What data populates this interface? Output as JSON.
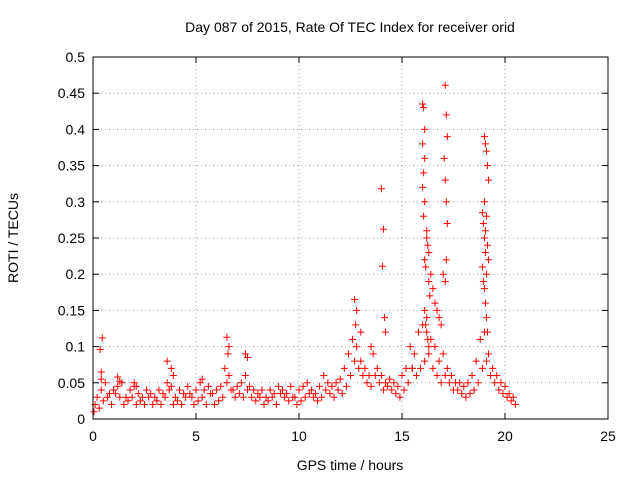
{
  "chart_data": {
    "type": "scatter",
    "title": "Day 087 of 2015, Rate Of TEC Index for receiver orid",
    "xlabel": "GPS time / hours",
    "ylabel": "ROTI / TECUs",
    "xlim": [
      0,
      25
    ],
    "ylim": [
      0,
      0.5
    ],
    "xticks": [
      0,
      5,
      10,
      15,
      20,
      25
    ],
    "xtick_labels": [
      "0",
      "5",
      "10",
      "15",
      "20",
      "25"
    ],
    "yticks": [
      0,
      0.05,
      0.1,
      0.15,
      0.2,
      0.25,
      0.3,
      0.35,
      0.4,
      0.45,
      0.5
    ],
    "ytick_labels": [
      "0",
      "0.05",
      "0.1",
      "0.15",
      "0.2",
      "0.25",
      "0.3",
      "0.35",
      "0.4",
      "0.45",
      "0.5"
    ],
    "grid": true,
    "marker": "plus",
    "color": "#ff0000",
    "series": [
      {
        "x": [
          0.1,
          0.3,
          0.5,
          0.7,
          0.9,
          1.1,
          1.3,
          1.5,
          1.7,
          1.9,
          2.1,
          2.3,
          2.5,
          2.7,
          2.9,
          3.1,
          3.3,
          3.5,
          3.7,
          3.9,
          4.1,
          4.3,
          4.5,
          4.7,
          4.9,
          5.1,
          5.3,
          5.5,
          5.7,
          5.9,
          6.1,
          6.3,
          6.5,
          6.7,
          6.9,
          7.1,
          7.3,
          7.5,
          7.7,
          7.9,
          8.1,
          8.3,
          8.5,
          8.7,
          8.9,
          9.1,
          9.3,
          9.5,
          9.7,
          9.9,
          10.1,
          10.3,
          10.5,
          10.7,
          10.9,
          11.1,
          11.3,
          11.5,
          11.7,
          11.9,
          12.1,
          12.3,
          12.5,
          12.7,
          12.9,
          13.1,
          13.3,
          13.5,
          13.7,
          13.9,
          14.1,
          14.3,
          14.5,
          14.7,
          14.9,
          15.1,
          15.3,
          15.5,
          15.7,
          15.9,
          16.1,
          16.3,
          16.5,
          16.7,
          16.9,
          17.1,
          17.3,
          17.5,
          17.7,
          17.9,
          18.1,
          18.3,
          18.5,
          18.7,
          18.9,
          19.1,
          19.3,
          19.5,
          19.7,
          19.9,
          20.1,
          20.3,
          20.5,
          0.05,
          0.2,
          0.4,
          0.6,
          0.8,
          1.0,
          1.2,
          1.4,
          1.6,
          1.8,
          2.0,
          2.2,
          2.4,
          2.6,
          2.8,
          3.0,
          3.2,
          3.4,
          3.6,
          3.8,
          4.0,
          4.2,
          4.4,
          4.6,
          4.8,
          5.0,
          5.2,
          5.4,
          5.6,
          5.8,
          6.0,
          6.2,
          6.4,
          6.6,
          6.8,
          7.0,
          7.2,
          7.4,
          7.6,
          7.8,
          8.0,
          8.2,
          8.4,
          8.6,
          8.8,
          9.0,
          9.2,
          9.4,
          9.6,
          9.8,
          10.0,
          10.2,
          10.4,
          10.6,
          10.8,
          11.0,
          11.2,
          11.4,
          11.6,
          11.8,
          12.0,
          12.2,
          12.4,
          12.6,
          12.8,
          13.0,
          13.2,
          13.4,
          13.6,
          13.8,
          14.0,
          14.2,
          14.4,
          14.6,
          14.8,
          15.0,
          15.2,
          15.4,
          15.6,
          15.8,
          16.0,
          16.2,
          16.4,
          16.6,
          16.8,
          17.0,
          17.2,
          17.4,
          17.6,
          17.8,
          18.0,
          18.2,
          18.4,
          18.6,
          18.8,
          19.0,
          19.2,
          19.4,
          19.6,
          19.8,
          20.0,
          20.2,
          20.4,
          0.45,
          0.35,
          0.4,
          0.4,
          1.2,
          1.3,
          2.0,
          2.1,
          3.6,
          3.8,
          3.9,
          5.3,
          6.5,
          6.6,
          6.55,
          7.4,
          7.5,
          12.7,
          12.8,
          12.75,
          13.0,
          13.5,
          14.0,
          14.1,
          14.05,
          14.15,
          14.2,
          15.5,
          16.0,
          16.05,
          16.1,
          16.0,
          16.1,
          16.05,
          16.0,
          16.1,
          16.05,
          16.2,
          16.3,
          16.4,
          16.5,
          16.6,
          16.7,
          16.8,
          16.9,
          17.0,
          17.1,
          17.15,
          17.2,
          17.05,
          17.1,
          17.15,
          17.2,
          17.15,
          17.1,
          19.0,
          19.05,
          19.1,
          19.15,
          19.2,
          19.0,
          19.1,
          19.05,
          19.15,
          19.2,
          19.1,
          19.0,
          19.05,
          19.1,
          19.15,
          18.9,
          18.95,
          19.0,
          19.05,
          18.9,
          18.95,
          16.2,
          16.25,
          16.1,
          16.15,
          16.3,
          16.35,
          16.1,
          16.15,
          16.2,
          16.25,
          16.3
        ],
        "y": [
          0.02,
          0.015,
          0.025,
          0.03,
          0.02,
          0.035,
          0.03,
          0.02,
          0.025,
          0.03,
          0.02,
          0.025,
          0.02,
          0.03,
          0.02,
          0.025,
          0.02,
          0.03,
          0.04,
          0.02,
          0.025,
          0.02,
          0.03,
          0.035,
          0.02,
          0.025,
          0.03,
          0.02,
          0.035,
          0.02,
          0.025,
          0.03,
          0.05,
          0.04,
          0.03,
          0.035,
          0.03,
          0.04,
          0.03,
          0.025,
          0.03,
          0.02,
          0.025,
          0.03,
          0.02,
          0.035,
          0.03,
          0.025,
          0.03,
          0.02,
          0.025,
          0.03,
          0.035,
          0.03,
          0.025,
          0.03,
          0.04,
          0.035,
          0.03,
          0.04,
          0.035,
          0.045,
          0.06,
          0.08,
          0.07,
          0.06,
          0.05,
          0.045,
          0.06,
          0.05,
          0.04,
          0.045,
          0.04,
          0.035,
          0.03,
          0.04,
          0.05,
          0.07,
          0.06,
          0.07,
          0.08,
          0.09,
          0.07,
          0.06,
          0.05,
          0.06,
          0.05,
          0.04,
          0.04,
          0.035,
          0.03,
          0.035,
          0.04,
          0.05,
          0.07,
          0.08,
          0.06,
          0.05,
          0.04,
          0.035,
          0.03,
          0.025,
          0.02,
          0.01,
          0.03,
          0.04,
          0.05,
          0.035,
          0.04,
          0.045,
          0.05,
          0.03,
          0.04,
          0.045,
          0.035,
          0.03,
          0.04,
          0.035,
          0.03,
          0.04,
          0.035,
          0.05,
          0.045,
          0.03,
          0.04,
          0.035,
          0.045,
          0.03,
          0.04,
          0.05,
          0.04,
          0.045,
          0.035,
          0.04,
          0.045,
          0.07,
          0.06,
          0.04,
          0.045,
          0.05,
          0.06,
          0.045,
          0.04,
          0.035,
          0.04,
          0.03,
          0.04,
          0.035,
          0.045,
          0.04,
          0.035,
          0.045,
          0.03,
          0.04,
          0.045,
          0.05,
          0.04,
          0.035,
          0.045,
          0.06,
          0.05,
          0.045,
          0.05,
          0.055,
          0.07,
          0.09,
          0.11,
          0.1,
          0.08,
          0.07,
          0.06,
          0.09,
          0.07,
          0.06,
          0.05,
          0.055,
          0.05,
          0.045,
          0.06,
          0.07,
          0.1,
          0.09,
          0.12,
          0.13,
          0.14,
          0.11,
          0.1,
          0.08,
          0.09,
          0.07,
          0.06,
          0.05,
          0.05,
          0.045,
          0.05,
          0.06,
          0.08,
          0.11,
          0.12,
          0.09,
          0.07,
          0.06,
          0.05,
          0.045,
          0.035,
          0.03,
          0.112,
          0.096,
          0.065,
          0.055,
          0.058,
          0.052,
          0.05,
          0.045,
          0.08,
          0.07,
          0.06,
          0.055,
          0.113,
          0.1,
          0.09,
          0.09,
          0.085,
          0.165,
          0.15,
          0.13,
          0.12,
          0.1,
          0.318,
          0.262,
          0.211,
          0.14,
          0.12,
          0.07,
          0.435,
          0.43,
          0.4,
          0.38,
          0.36,
          0.34,
          0.32,
          0.3,
          0.28,
          0.25,
          0.23,
          0.2,
          0.18,
          0.16,
          0.15,
          0.14,
          0.13,
          0.2,
          0.461,
          0.42,
          0.39,
          0.36,
          0.33,
          0.3,
          0.27,
          0.22,
          0.19,
          0.39,
          0.38,
          0.37,
          0.35,
          0.33,
          0.3,
          0.28,
          0.26,
          0.24,
          0.22,
          0.2,
          0.18,
          0.16,
          0.14,
          0.12,
          0.285,
          0.27,
          0.25,
          0.23,
          0.21,
          0.19,
          0.26,
          0.24,
          0.22,
          0.21,
          0.19,
          0.17,
          0.15,
          0.13,
          0.12,
          0.11,
          0.1
        ]
      }
    ]
  }
}
